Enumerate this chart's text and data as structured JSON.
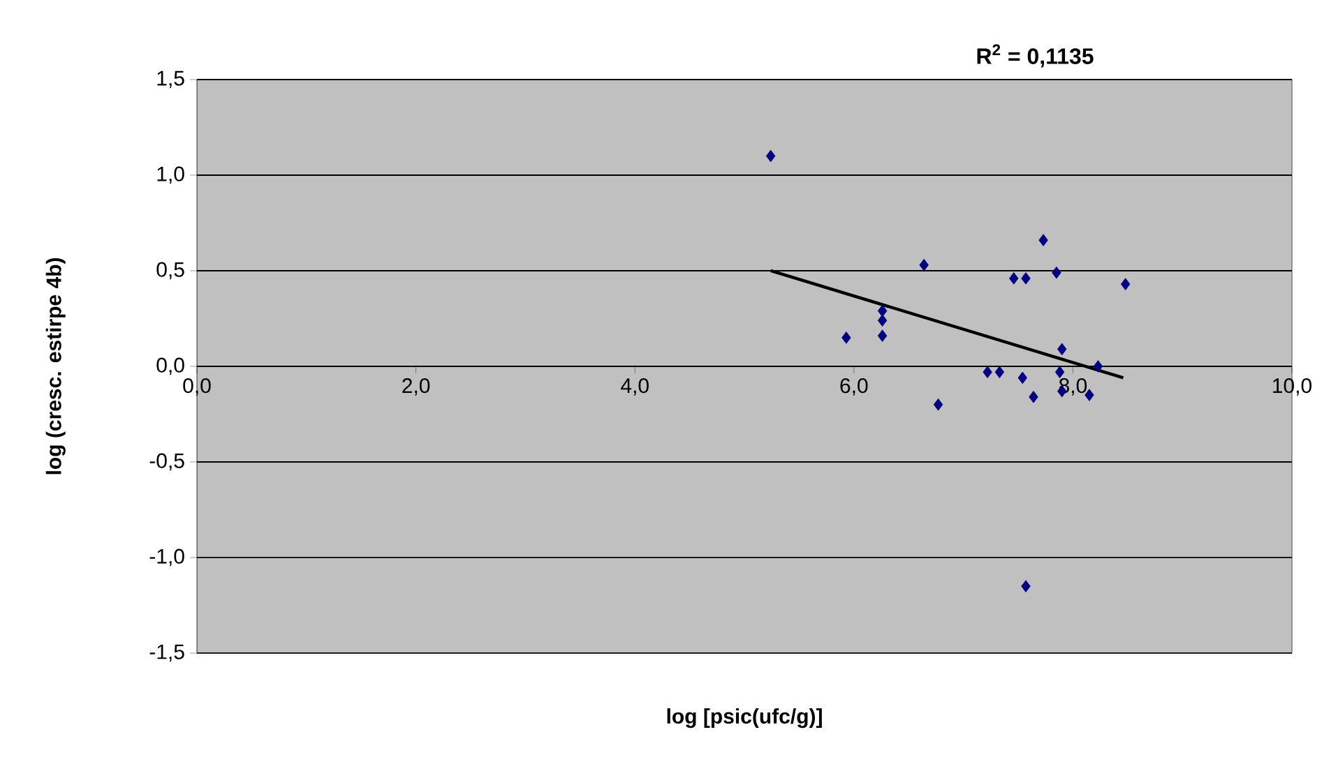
{
  "chart_data": {
    "type": "scatter",
    "xlabel": "log [psic(ufc/g)]",
    "ylabel": "log (cresc. estirpe 4b)",
    "annotations": [
      "R$^{2}$ = 0,1135"
    ],
    "series": [
      {
        "color": "#000080",
        "marker": "diamond",
        "x": [
          5.24,
          5.93,
          6.26,
          6.26,
          6.26,
          6.64,
          6.77,
          7.22,
          7.33,
          7.46,
          7.57,
          7.54,
          7.64,
          7.73,
          7.85,
          7.9,
          7.88,
          7.9,
          7.57,
          8.23,
          8.15,
          8.48
        ],
        "values": [
          1.1,
          0.15,
          0.29,
          0.24,
          0.16,
          0.53,
          -0.2,
          -0.03,
          -0.03,
          0.46,
          0.46,
          -0.06,
          -0.16,
          0.66,
          0.49,
          0.09,
          -0.03,
          -0.13,
          -1.15,
          0.0,
          -0.15,
          0.43
        ]
      },
      {
        "type": "line",
        "color": "#000000",
        "marker": "none",
        "x": [
          5.24,
          8.46
        ],
        "values": [
          0.5,
          -0.06
        ]
      }
    ],
    "xlim": [
      0,
      10
    ],
    "ylim": [
      -1.5,
      1.5
    ],
    "xticks": [
      {
        "value": 0,
        "label": "0,0"
      },
      {
        "value": 2,
        "label": "2,0"
      },
      {
        "value": 4,
        "label": "4,0"
      },
      {
        "value": 6,
        "label": "6,0"
      },
      {
        "value": 8,
        "label": "8,0"
      },
      {
        "value": 10,
        "label": "10,0"
      }
    ],
    "yticks": [
      {
        "value": -1.5,
        "label": "-1,5"
      },
      {
        "value": -1,
        "label": "-1,0"
      },
      {
        "value": -0.5,
        "label": "-0,5"
      },
      {
        "value": 0,
        "label": "0,0"
      },
      {
        "value": 0.5,
        "label": "0,5"
      },
      {
        "value": 1,
        "label": "1,0"
      },
      {
        "value": 1.5,
        "label": "1,5"
      }
    ],
    "grid": "y"
  }
}
